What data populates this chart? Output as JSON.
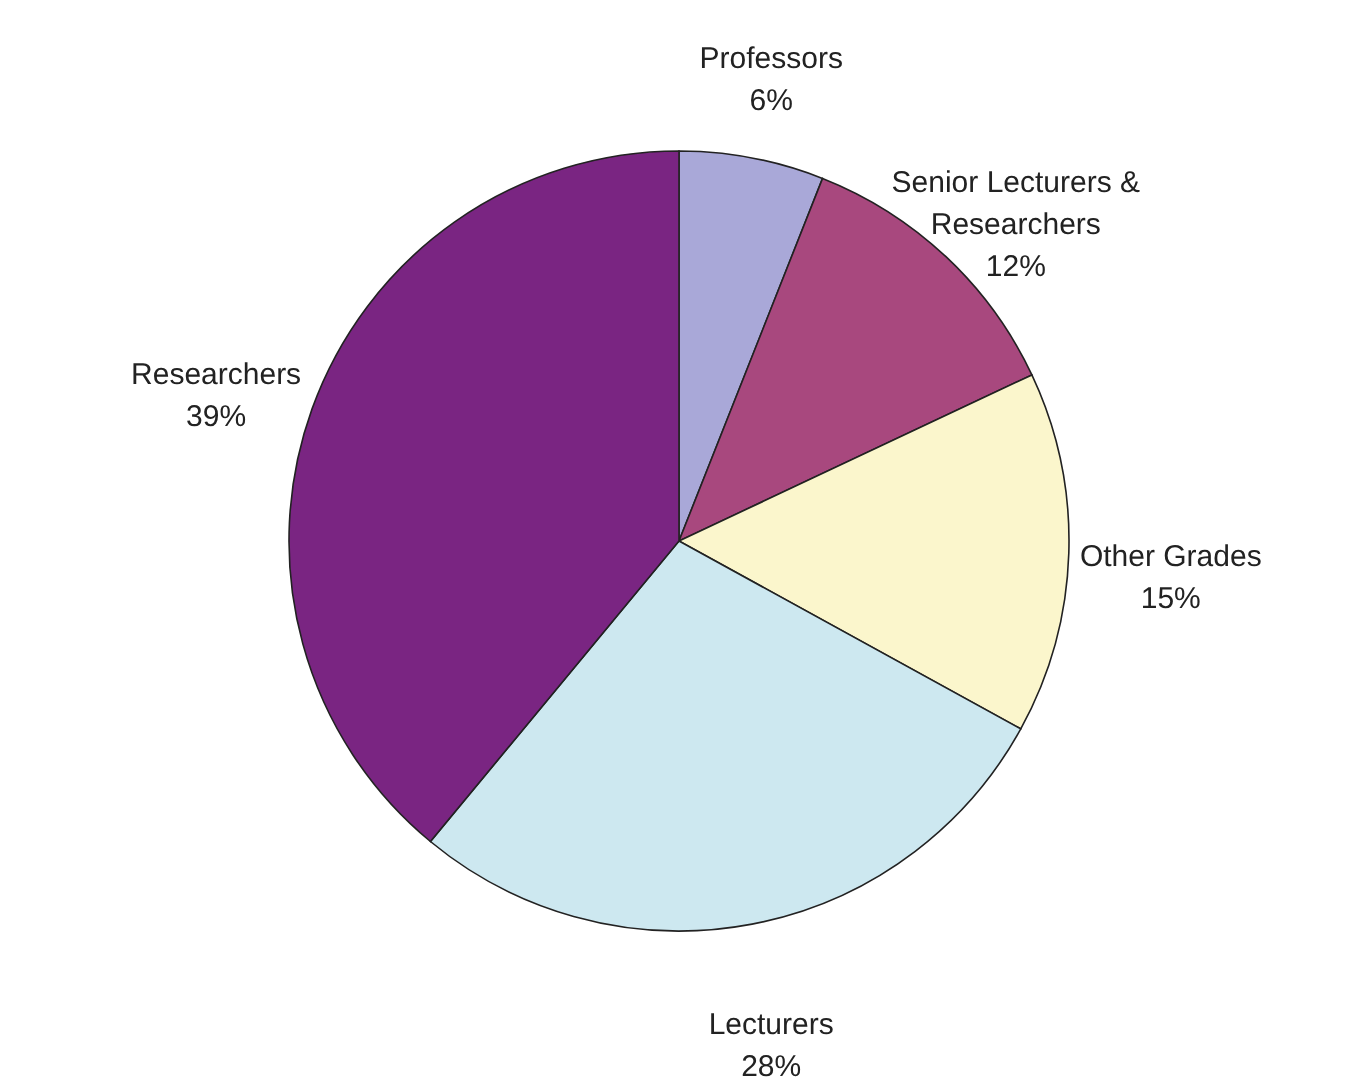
{
  "chart_data": {
    "type": "pie",
    "categories": [
      "Professors",
      "Senior Lecturers & Researchers",
      "Other Grades",
      "Lecturers",
      "Researchers"
    ],
    "values": [
      6,
      12,
      15,
      28,
      39
    ],
    "value_labels": [
      "6%",
      "12%",
      "15%",
      "28%",
      "39%"
    ],
    "colors": [
      "#a9a8d8",
      "#a8487e",
      "#fbf6cc",
      "#cde8f0",
      "#7a2582"
    ]
  }
}
